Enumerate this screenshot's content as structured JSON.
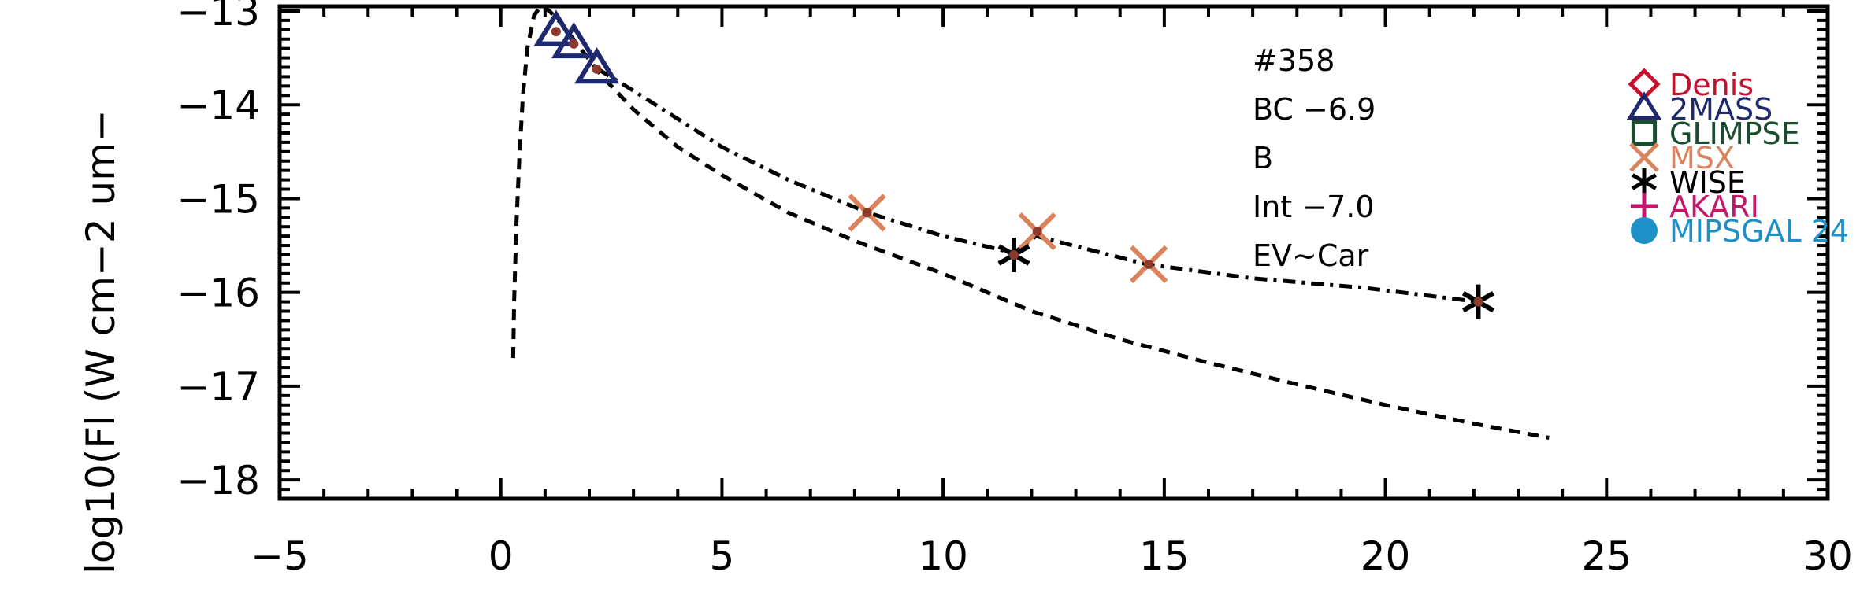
{
  "chart_data": {
    "type": "scatter",
    "title": "",
    "xlabel": "",
    "ylabel": "log10(Fl (W cm−2 um−",
    "xlim": [
      -5,
      30
    ],
    "ylim": [
      -18.2,
      -12.95
    ],
    "xticks": [
      -5,
      0,
      5,
      10,
      15,
      20,
      25,
      30
    ],
    "yticks": [
      -13,
      -14,
      -15,
      -16,
      -17,
      -18
    ],
    "xtick_labels": [
      "−5",
      "0",
      "5",
      "10",
      "15",
      "20",
      "25",
      "30"
    ],
    "ytick_labels": [
      "−13",
      "−14",
      "−15",
      "−16",
      "−17",
      "−18"
    ],
    "annotations": [
      "#358",
      "BC −6.9",
      "B",
      "Int −7.0",
      "EV~Car"
    ],
    "legend_position": "right",
    "series": [
      {
        "name": "Denis",
        "marker": "diamond",
        "color": "#c8102e",
        "x": [],
        "y": []
      },
      {
        "name": "2MASS",
        "marker": "triangle",
        "color": "#1f2a6e",
        "x": [
          1.25,
          1.65,
          2.17
        ],
        "y": [
          -13.22,
          -13.35,
          -13.62
        ]
      },
      {
        "name": "GLIMPSE",
        "marker": "square",
        "color": "#1a4d2e",
        "x": [],
        "y": []
      },
      {
        "name": "MSX",
        "marker": "x",
        "color": "#d9825b",
        "x": [
          8.28,
          12.13,
          14.65
        ],
        "y": [
          -15.15,
          -15.35,
          -15.7
        ]
      },
      {
        "name": "WISE",
        "marker": "asterisk",
        "color": "#000000",
        "x": [
          11.6,
          22.1
        ],
        "y": [
          -15.6,
          -16.1
        ]
      },
      {
        "name": "AKARI",
        "marker": "plus",
        "color": "#c2186b",
        "x": [],
        "y": []
      },
      {
        "name": "MIPSGAL 24",
        "marker": "circle",
        "color": "#1e90c8",
        "x": [],
        "y": []
      }
    ],
    "curves": [
      {
        "style": "dashed",
        "x": [
          0.28,
          0.3,
          0.35,
          0.42,
          0.5,
          0.6,
          0.75,
          0.9,
          1.1,
          1.4,
          1.8,
          2.3,
          3,
          4,
          5,
          6.5,
          8,
          10,
          12,
          14,
          16,
          18,
          20,
          22,
          23.7
        ],
        "y": [
          -16.7,
          -16.1,
          -15.3,
          -14.55,
          -13.9,
          -13.4,
          -13.05,
          -12.95,
          -13.0,
          -13.15,
          -13.4,
          -13.7,
          -14.05,
          -14.45,
          -14.75,
          -15.15,
          -15.45,
          -15.8,
          -16.2,
          -16.5,
          -16.75,
          -16.98,
          -17.2,
          -17.4,
          -17.55
        ]
      },
      {
        "style": "dash-dot",
        "x": [
          2.2,
          3,
          4,
          5,
          6.5,
          8.3,
          10,
          11.6,
          12.1,
          14.6,
          17,
          19.5,
          22.1
        ],
        "y": [
          -13.62,
          -13.85,
          -14.15,
          -14.45,
          -14.8,
          -15.15,
          -15.4,
          -15.58,
          -15.4,
          -15.7,
          -15.85,
          -15.95,
          -16.1
        ]
      }
    ]
  }
}
